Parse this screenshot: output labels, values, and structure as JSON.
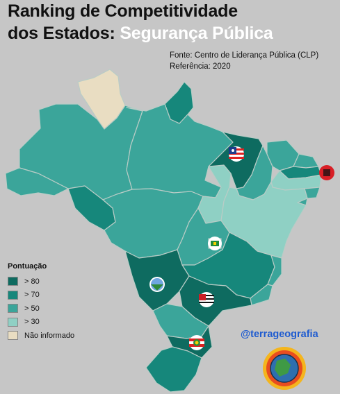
{
  "title": {
    "line1": "Ranking de Competitividade",
    "line2_prefix": "dos Estados:",
    "line2_highlight": "Segurança Pública"
  },
  "source": {
    "line1": "Fonte: Centro de Liderança Pública (CLP)",
    "line2": "Referência: 2020"
  },
  "legend": {
    "title": "Pontuação",
    "items": [
      {
        "label": "> 80",
        "color": "#0e6b60"
      },
      {
        "label": "> 70",
        "color": "#16877b"
      },
      {
        "label": "> 50",
        "color": "#3ba59a"
      },
      {
        "label": "> 30",
        "color": "#8fd0c4"
      },
      {
        "label": "Não informado",
        "color": "#e9ddc2"
      }
    ]
  },
  "colors": {
    "background": "#c6c6c6",
    "border": "#b9ccc6",
    "handle": "#1e5bd0"
  },
  "handle": "@terrageografia",
  "states": [
    {
      "name": "Roraima",
      "category": "Não informado"
    },
    {
      "name": "Amapá",
      "category": "> 70"
    },
    {
      "name": "Amazonas",
      "category": "> 50"
    },
    {
      "name": "Pará",
      "category": "> 50"
    },
    {
      "name": "Acre",
      "category": "> 50"
    },
    {
      "name": "Rondônia",
      "category": "> 70"
    },
    {
      "name": "Mato Grosso",
      "category": "> 50"
    },
    {
      "name": "Tocantins",
      "category": "> 30"
    },
    {
      "name": "Maranhão",
      "category": "> 80"
    },
    {
      "name": "Piauí",
      "category": "> 50"
    },
    {
      "name": "Ceará",
      "category": "> 50"
    },
    {
      "name": "Rio Grande do Norte",
      "category": "> 50"
    },
    {
      "name": "Paraíba",
      "category": "> 70"
    },
    {
      "name": "Pernambuco",
      "category": "> 30"
    },
    {
      "name": "Alagoas",
      "category": "> 50"
    },
    {
      "name": "Sergipe",
      "category": "> 50"
    },
    {
      "name": "Bahia",
      "category": "> 30"
    },
    {
      "name": "Goiás",
      "category": "> 50"
    },
    {
      "name": "Distrito Federal",
      "category": "> 30"
    },
    {
      "name": "Minas Gerais",
      "category": "> 70"
    },
    {
      "name": "Espírito Santo",
      "category": "> 50"
    },
    {
      "name": "Rio de Janeiro",
      "category": "> 50"
    },
    {
      "name": "Mato Grosso do Sul",
      "category": "> 80"
    },
    {
      "name": "São Paulo",
      "category": "> 80"
    },
    {
      "name": "Paraná",
      "category": "> 50"
    },
    {
      "name": "Santa Catarina",
      "category": "> 80"
    },
    {
      "name": "Rio Grande do Sul",
      "category": "> 70"
    }
  ]
}
